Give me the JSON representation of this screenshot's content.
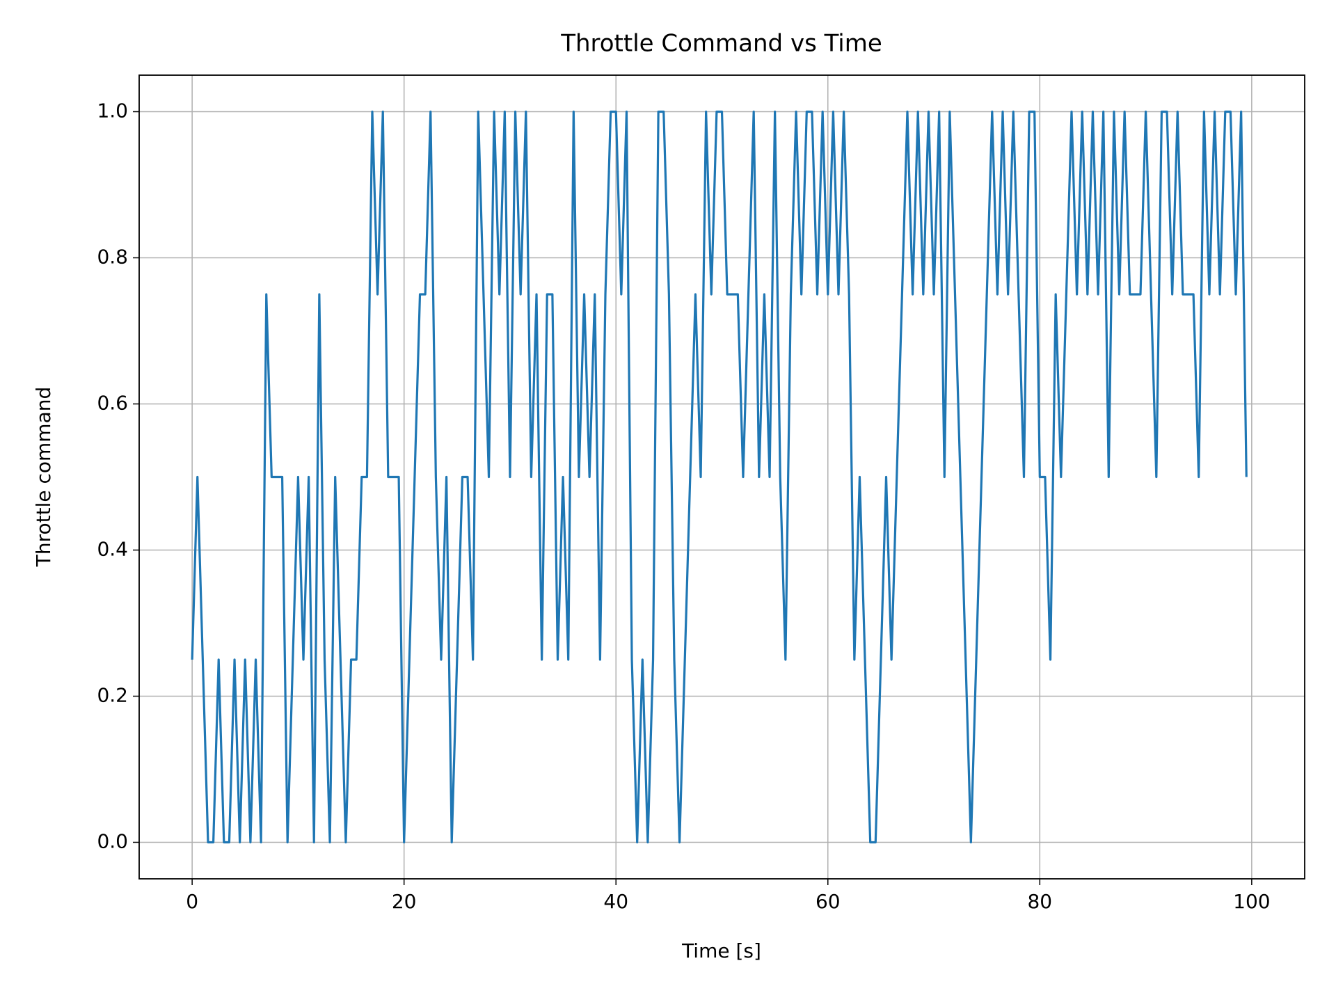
{
  "chart_data": {
    "type": "line",
    "title": "Throttle Command vs Time",
    "x_label": "Time [s]",
    "y_label": "Throttle command",
    "color": "#1f77b4",
    "grid": true,
    "xlim": [
      -5,
      105
    ],
    "ylim": [
      -0.05,
      1.05
    ],
    "xticks": [
      0,
      20,
      40,
      60,
      80,
      100
    ],
    "yticks": [
      {
        "value": 0,
        "label": "0.0"
      },
      {
        "value": 0.2,
        "label": "0.2"
      },
      {
        "value": 0.4,
        "label": "0.4"
      },
      {
        "value": 0.6,
        "label": "0.6"
      },
      {
        "value": 0.8,
        "label": "0.8"
      },
      {
        "value": 1,
        "label": "1.0"
      }
    ],
    "x": [
      0,
      0.5,
      1,
      1.5,
      2,
      2.5,
      3,
      3.5,
      4,
      4.5,
      5,
      5.5,
      6,
      6.5,
      7,
      7.5,
      8,
      8.5,
      9,
      9.5,
      10,
      10.5,
      11,
      11.5,
      12,
      12.5,
      13,
      13.5,
      14,
      14.5,
      15,
      15.5,
      16,
      16.5,
      17,
      17.5,
      18,
      18.5,
      19,
      19.5,
      20,
      20.5,
      21,
      21.5,
      22,
      22.5,
      23,
      23.5,
      24,
      24.5,
      25,
      25.5,
      26,
      26.5,
      27,
      27.5,
      28,
      28.5,
      29,
      29.5,
      30,
      30.5,
      31,
      31.5,
      32,
      32.5,
      33,
      33.5,
      34,
      34.5,
      35,
      35.5,
      36,
      36.5,
      37,
      37.5,
      38,
      38.5,
      39,
      39.5,
      40,
      40.5,
      41,
      41.5,
      42,
      42.5,
      43,
      43.5,
      44,
      44.5,
      45,
      45.5,
      46,
      46.5,
      47,
      47.5,
      48,
      48.5,
      49,
      49.5,
      50,
      50.5,
      51,
      51.5,
      52,
      52.5,
      53,
      53.5,
      54,
      54.5,
      55,
      55.5,
      56,
      56.5,
      57,
      57.5,
      58,
      58.5,
      59,
      59.5,
      60,
      60.5,
      61,
      61.5,
      62,
      62.5,
      63,
      63.5,
      64,
      64.5,
      65,
      65.5,
      66,
      66.5,
      67,
      67.5,
      68,
      68.5,
      69,
      69.5,
      70,
      70.5,
      71,
      71.5,
      72,
      72.5,
      73,
      73.5,
      74,
      74.5,
      75,
      75.5,
      76,
      76.5,
      77,
      77.5,
      78,
      78.5,
      79,
      79.5,
      80,
      80.5,
      81,
      81.5,
      82,
      82.5,
      83,
      83.5,
      84,
      84.5,
      85,
      85.5,
      86,
      86.5,
      87,
      87.5,
      88,
      88.5,
      89,
      89.5,
      90,
      90.5,
      91,
      91.5,
      92,
      92.5,
      93,
      93.5,
      94,
      94.5,
      95,
      95.5,
      96,
      96.5,
      97,
      97.5,
      98,
      98.5,
      99,
      99.5
    ],
    "values": [
      0.25,
      0.5,
      0.25,
      0,
      0,
      0.25,
      0,
      0,
      0.25,
      0,
      0.25,
      0,
      0.25,
      0,
      0.75,
      0.5,
      0.5,
      0.5,
      0,
      0.25,
      0.5,
      0.25,
      0.5,
      0,
      0.75,
      0.25,
      0,
      0.5,
      0.25,
      0,
      0.25,
      0.25,
      0.5,
      0.5,
      1,
      0.75,
      1,
      0.5,
      0.5,
      0.5,
      0,
      0.25,
      0.5,
      0.75,
      0.75,
      1,
      0.5,
      0.25,
      0.5,
      0,
      0.25,
      0.5,
      0.5,
      0.25,
      1,
      0.75,
      0.5,
      1,
      0.75,
      1,
      0.5,
      1,
      0.75,
      1,
      0.5,
      0.75,
      0.25,
      0.75,
      0.75,
      0.25,
      0.5,
      0.25,
      1,
      0.5,
      0.75,
      0.5,
      0.75,
      0.25,
      0.75,
      1,
      1,
      0.75,
      1,
      0.25,
      0,
      0.25,
      0,
      0.25,
      1,
      1,
      0.75,
      0.25,
      0,
      0.25,
      0.5,
      0.75,
      0.5,
      1,
      0.75,
      1,
      1,
      0.75,
      0.75,
      0.75,
      0.5,
      0.75,
      1,
      0.5,
      0.75,
      0.5,
      1,
      0.5,
      0.25,
      0.75,
      1,
      0.75,
      1,
      1,
      0.75,
      1,
      0.75,
      1,
      0.75,
      1,
      0.75,
      0.25,
      0.5,
      0.25,
      0,
      0,
      0.25,
      0.5,
      0.25,
      0.5,
      0.75,
      1,
      0.75,
      1,
      0.75,
      1,
      0.75,
      1,
      0.5,
      1,
      0.75,
      0.5,
      0.25,
      0,
      0.25,
      0.5,
      0.75,
      1,
      0.75,
      1,
      0.75,
      1,
      0.75,
      0.5,
      1,
      1,
      0.5,
      0.5,
      0.25,
      0.75,
      0.5,
      0.75,
      1,
      0.75,
      1,
      0.75,
      1,
      0.75,
      1,
      0.5,
      1,
      0.75,
      1,
      0.75,
      0.75,
      0.75,
      1,
      0.75,
      0.5,
      1,
      1,
      0.75,
      1,
      0.75,
      0.75,
      0.75,
      0.5,
      1,
      0.75,
      1,
      0.75,
      1,
      1,
      0.75,
      1,
      0.5
    ]
  }
}
